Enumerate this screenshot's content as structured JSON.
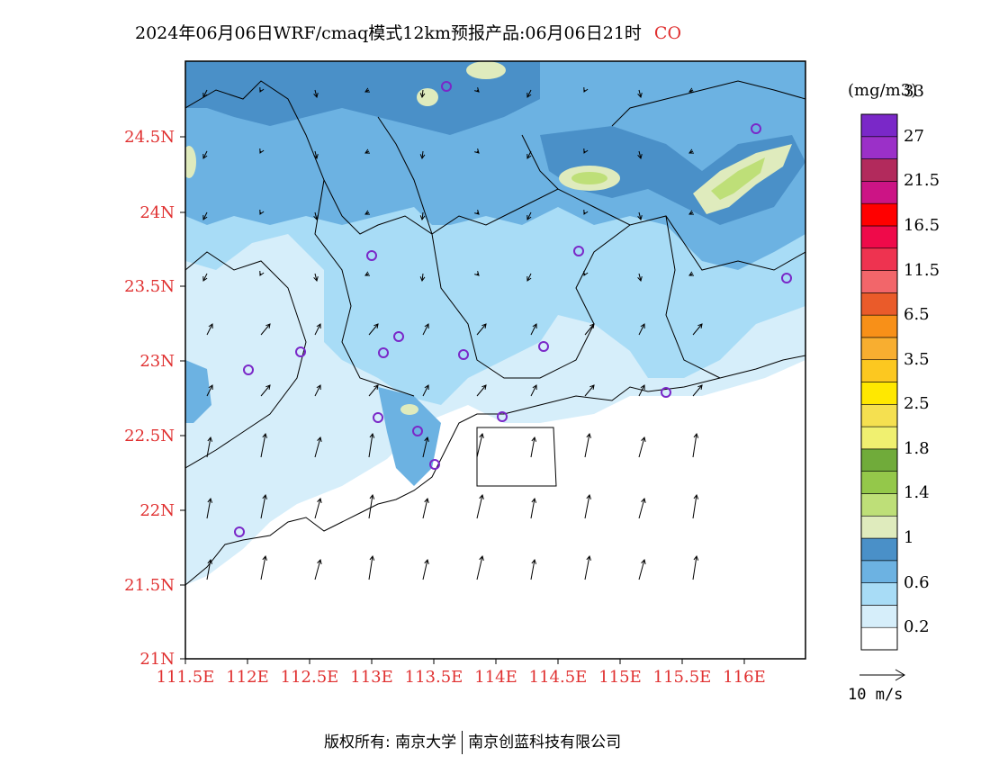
{
  "title": {
    "main": "2024年06月06日WRF/cmaq模式12km预报产品:06月06日21时",
    "species": "CO"
  },
  "map": {
    "lat_ticks": [
      "24.5N",
      "24N",
      "23.5N",
      "23N",
      "22.5N",
      "22N",
      "21.5N",
      "21N"
    ],
    "lon_ticks": [
      "111.5E",
      "112E",
      "112.5E",
      "113E",
      "113.5E",
      "114E",
      "114.5E",
      "115E",
      "115.5E",
      "116E"
    ],
    "tick_color": "#e03030"
  },
  "colorbar": {
    "unit": "(mg/m3)",
    "labels": [
      "0.2",
      "0.6",
      "1",
      "1.4",
      "1.8",
      "2.5",
      "3.5",
      "6.5",
      "11.5",
      "16.5",
      "21.5",
      "27",
      "33"
    ],
    "colors": [
      "#ffffff",
      "#d6eefa",
      "#a8dcf6",
      "#6cb2e2",
      "#4a90c8",
      "#dfebbd",
      "#bedf78",
      "#94c84a",
      "#70ab3a",
      "#f0f070",
      "#f5e050",
      "#ffe800",
      "#fcc820",
      "#f8ae30",
      "#f89018",
      "#ea5b2a",
      "#f2666a",
      "#ee3350",
      "#ef0a4a",
      "#ff0000",
      "#cc1485",
      "#b22a5c",
      "#9b30c8",
      "#7a28c8"
    ]
  },
  "wind_reference": {
    "label": "10 m/s"
  },
  "credit": {
    "left": "版权所有: 南京大学",
    "right": "南京创蓝科技有限公司"
  }
}
